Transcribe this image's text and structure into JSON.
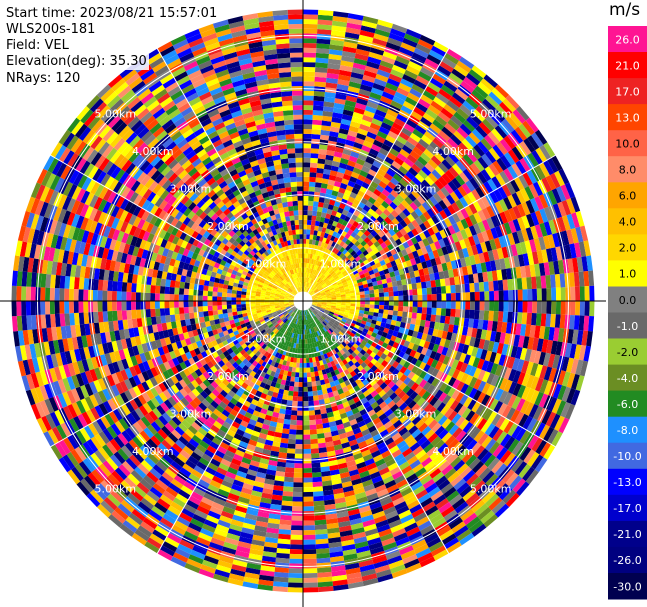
{
  "header": {
    "start_time": "Start time: 2023/08/21 15:57:01",
    "instrument": "WLS200s-181",
    "field": "Field: VEL",
    "elevation": "Elevation(deg): 35.30",
    "nrays": "NRays: 120"
  },
  "chart_data": {
    "type": "heatmap",
    "projection": "polar-ppi",
    "field": "VEL",
    "n_rays": 120,
    "range_rings": [
      "1.00km",
      "2.00km",
      "3.00km",
      "4.00km",
      "5.00km"
    ],
    "max_range_km": 5.5,
    "colorbar": {
      "unit": "m/s",
      "labels": [
        "26.0",
        "21.0",
        "17.0",
        "13.0",
        "10.0",
        "8.0",
        "6.0",
        "4.0",
        "2.0",
        "1.0",
        "0.0",
        "-1.0",
        "-2.0",
        "-4.0",
        "-6.0",
        "-8.0",
        "-10.0",
        "-13.0",
        "-17.0",
        "-21.0",
        "-26.0",
        "-30.0"
      ],
      "colors": [
        "#ff1493",
        "#ff0000",
        "#ee2222",
        "#ff4500",
        "#ff6347",
        "#ff8c69",
        "#ffa500",
        "#ffc000",
        "#ffd700",
        "#ffff00",
        "#808080",
        "#696969",
        "#9acd32",
        "#6b8e23",
        "#228b22",
        "#1e90ff",
        "#4169e1",
        "#0000ff",
        "#0000cd",
        "#00008b",
        "#000080",
        "#000050"
      ]
    },
    "near_field": {
      "inner_range_km": 1.0,
      "approaching_sector": "south (green, negative)",
      "receding_sector": "west-east north half (yellow, positive)"
    }
  }
}
